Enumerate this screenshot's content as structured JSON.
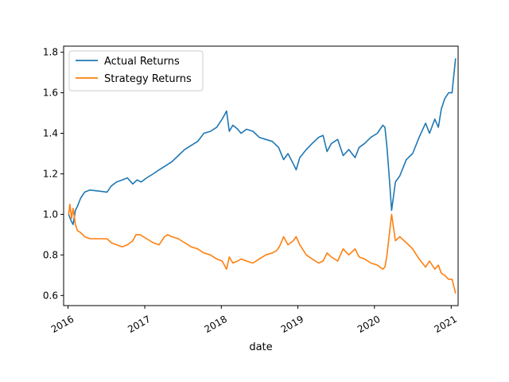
{
  "chart_data": {
    "type": "line",
    "title": "",
    "xlabel": "date",
    "ylabel": "",
    "ylim": [
      0.55,
      1.83
    ],
    "xlim": [
      "2015-12-11",
      "2021-02-03"
    ],
    "grid": false,
    "legend_position": "top-left",
    "x_ticks": [
      "2016",
      "2017",
      "2018",
      "2019",
      "2020",
      "2021"
    ],
    "y_ticks": [
      "0.6",
      "0.8",
      "1.0",
      "1.2",
      "1.4",
      "1.6",
      "1.8"
    ],
    "series": [
      {
        "name": "Actual Returns",
        "color": "#1f77b4",
        "points": [
          [
            "2016-01-04",
            1.0
          ],
          [
            "2016-01-15",
            0.97
          ],
          [
            "2016-01-25",
            0.95
          ],
          [
            "2016-02-05",
            1.02
          ],
          [
            "2016-02-15",
            1.04
          ],
          [
            "2016-03-01",
            1.08
          ],
          [
            "2016-03-20",
            1.11
          ],
          [
            "2016-04-15",
            1.12
          ],
          [
            "2016-07-05",
            1.11
          ],
          [
            "2016-07-25",
            1.14
          ],
          [
            "2016-08-20",
            1.16
          ],
          [
            "2016-09-15",
            1.17
          ],
          [
            "2016-10-10",
            1.18
          ],
          [
            "2016-11-05",
            1.15
          ],
          [
            "2016-11-25",
            1.17
          ],
          [
            "2016-12-15",
            1.16
          ],
          [
            "2017-01-10",
            1.18
          ],
          [
            "2017-02-10",
            1.2
          ],
          [
            "2017-03-10",
            1.22
          ],
          [
            "2017-04-10",
            1.24
          ],
          [
            "2017-05-10",
            1.26
          ],
          [
            "2017-06-10",
            1.29
          ],
          [
            "2017-07-10",
            1.32
          ],
          [
            "2017-08-10",
            1.34
          ],
          [
            "2017-09-10",
            1.36
          ],
          [
            "2017-10-10",
            1.4
          ],
          [
            "2017-11-10",
            1.41
          ],
          [
            "2017-12-10",
            1.43
          ],
          [
            "2018-01-05",
            1.47
          ],
          [
            "2018-01-26",
            1.51
          ],
          [
            "2018-02-08",
            1.41
          ],
          [
            "2018-02-25",
            1.44
          ],
          [
            "2018-03-20",
            1.42
          ],
          [
            "2018-04-05",
            1.4
          ],
          [
            "2018-05-01",
            1.42
          ],
          [
            "2018-06-01",
            1.41
          ],
          [
            "2018-07-01",
            1.38
          ],
          [
            "2018-08-01",
            1.37
          ],
          [
            "2018-09-01",
            1.36
          ],
          [
            "2018-10-01",
            1.33
          ],
          [
            "2018-10-25",
            1.27
          ],
          [
            "2018-11-15",
            1.3
          ],
          [
            "2018-12-10",
            1.25
          ],
          [
            "2018-12-24",
            1.22
          ],
          [
            "2019-01-10",
            1.28
          ],
          [
            "2019-02-10",
            1.32
          ],
          [
            "2019-03-10",
            1.35
          ],
          [
            "2019-04-10",
            1.38
          ],
          [
            "2019-05-01",
            1.39
          ],
          [
            "2019-05-20",
            1.31
          ],
          [
            "2019-06-10",
            1.35
          ],
          [
            "2019-07-10",
            1.37
          ],
          [
            "2019-08-05",
            1.29
          ],
          [
            "2019-09-01",
            1.32
          ],
          [
            "2019-10-01",
            1.28
          ],
          [
            "2019-10-20",
            1.33
          ],
          [
            "2019-11-15",
            1.35
          ],
          [
            "2019-12-15",
            1.38
          ],
          [
            "2020-01-15",
            1.4
          ],
          [
            "2020-02-10",
            1.44
          ],
          [
            "2020-02-20",
            1.43
          ],
          [
            "2020-03-01",
            1.33
          ],
          [
            "2020-03-12",
            1.18
          ],
          [
            "2020-03-23",
            1.02
          ],
          [
            "2020-04-10",
            1.16
          ],
          [
            "2020-05-01",
            1.19
          ],
          [
            "2020-06-01",
            1.27
          ],
          [
            "2020-07-01",
            1.3
          ],
          [
            "2020-08-01",
            1.38
          ],
          [
            "2020-09-01",
            1.45
          ],
          [
            "2020-09-20",
            1.4
          ],
          [
            "2020-10-15",
            1.47
          ],
          [
            "2020-11-01",
            1.43
          ],
          [
            "2020-11-15",
            1.52
          ],
          [
            "2020-12-01",
            1.57
          ],
          [
            "2020-12-20",
            1.6
          ],
          [
            "2021-01-05",
            1.6
          ],
          [
            "2021-01-15",
            1.7
          ],
          [
            "2021-01-22",
            1.77
          ]
        ]
      },
      {
        "name": "Strategy Returns",
        "color": "#ff7f0e",
        "points": [
          [
            "2016-01-04",
            1.0
          ],
          [
            "2016-01-10",
            1.05
          ],
          [
            "2016-01-18",
            0.98
          ],
          [
            "2016-01-25",
            1.03
          ],
          [
            "2016-02-05",
            0.95
          ],
          [
            "2016-02-15",
            0.92
          ],
          [
            "2016-03-01",
            0.91
          ],
          [
            "2016-03-20",
            0.89
          ],
          [
            "2016-04-15",
            0.88
          ],
          [
            "2016-07-05",
            0.88
          ],
          [
            "2016-07-25",
            0.86
          ],
          [
            "2016-08-20",
            0.85
          ],
          [
            "2016-09-15",
            0.84
          ],
          [
            "2016-10-10",
            0.85
          ],
          [
            "2016-11-05",
            0.87
          ],
          [
            "2016-11-20",
            0.9
          ],
          [
            "2016-12-10",
            0.9
          ],
          [
            "2017-01-10",
            0.88
          ],
          [
            "2017-02-10",
            0.86
          ],
          [
            "2017-03-10",
            0.85
          ],
          [
            "2017-04-05",
            0.89
          ],
          [
            "2017-04-20",
            0.9
          ],
          [
            "2017-05-10",
            0.89
          ],
          [
            "2017-06-10",
            0.88
          ],
          [
            "2017-07-10",
            0.86
          ],
          [
            "2017-08-10",
            0.84
          ],
          [
            "2017-09-10",
            0.83
          ],
          [
            "2017-10-10",
            0.81
          ],
          [
            "2017-11-10",
            0.8
          ],
          [
            "2017-12-10",
            0.78
          ],
          [
            "2018-01-05",
            0.77
          ],
          [
            "2018-01-26",
            0.73
          ],
          [
            "2018-02-08",
            0.79
          ],
          [
            "2018-02-25",
            0.76
          ],
          [
            "2018-03-20",
            0.77
          ],
          [
            "2018-04-05",
            0.78
          ],
          [
            "2018-05-01",
            0.77
          ],
          [
            "2018-06-01",
            0.76
          ],
          [
            "2018-07-01",
            0.78
          ],
          [
            "2018-08-01",
            0.8
          ],
          [
            "2018-09-01",
            0.81
          ],
          [
            "2018-09-20",
            0.82
          ],
          [
            "2018-10-05",
            0.84
          ],
          [
            "2018-10-25",
            0.89
          ],
          [
            "2018-11-15",
            0.85
          ],
          [
            "2018-12-10",
            0.87
          ],
          [
            "2018-12-24",
            0.89
          ],
          [
            "2019-01-10",
            0.85
          ],
          [
            "2019-02-10",
            0.8
          ],
          [
            "2019-03-10",
            0.78
          ],
          [
            "2019-04-10",
            0.76
          ],
          [
            "2019-05-01",
            0.77
          ],
          [
            "2019-05-20",
            0.81
          ],
          [
            "2019-06-10",
            0.79
          ],
          [
            "2019-07-10",
            0.77
          ],
          [
            "2019-08-05",
            0.83
          ],
          [
            "2019-09-01",
            0.8
          ],
          [
            "2019-10-01",
            0.83
          ],
          [
            "2019-10-20",
            0.79
          ],
          [
            "2019-11-15",
            0.78
          ],
          [
            "2019-12-15",
            0.76
          ],
          [
            "2020-01-15",
            0.75
          ],
          [
            "2020-02-10",
            0.73
          ],
          [
            "2020-02-20",
            0.74
          ],
          [
            "2020-03-01",
            0.8
          ],
          [
            "2020-03-12",
            0.9
          ],
          [
            "2020-03-23",
            1.0
          ],
          [
            "2020-04-10",
            0.87
          ],
          [
            "2020-05-01",
            0.89
          ],
          [
            "2020-06-01",
            0.86
          ],
          [
            "2020-07-01",
            0.83
          ],
          [
            "2020-08-01",
            0.78
          ],
          [
            "2020-09-01",
            0.74
          ],
          [
            "2020-09-20",
            0.77
          ],
          [
            "2020-10-15",
            0.73
          ],
          [
            "2020-11-01",
            0.75
          ],
          [
            "2020-11-15",
            0.71
          ],
          [
            "2020-12-01",
            0.7
          ],
          [
            "2020-12-20",
            0.68
          ],
          [
            "2021-01-05",
            0.68
          ],
          [
            "2021-01-15",
            0.64
          ],
          [
            "2021-01-22",
            0.61
          ]
        ]
      }
    ]
  }
}
